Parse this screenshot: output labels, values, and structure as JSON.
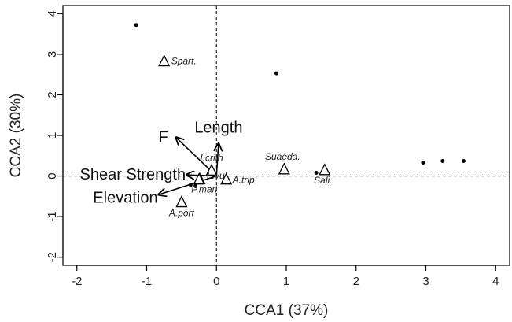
{
  "chart_data": {
    "type": "scatter",
    "xlabel": "CCA1 (37%)",
    "ylabel": "CCA2 (30%)",
    "xlim": [
      -2.2,
      4.2
    ],
    "ylim": [
      -2.2,
      4.2
    ],
    "xticks": [
      -2,
      -1,
      0,
      1,
      2,
      3,
      4
    ],
    "yticks": [
      -2,
      -1,
      0,
      1,
      2,
      3,
      4
    ],
    "xtick_labels": [
      "-2",
      "-1",
      "0",
      "1",
      "2",
      "3",
      "4"
    ],
    "ytick_labels": [
      "-2",
      "-1",
      "0",
      "1",
      "2",
      "3",
      "4"
    ],
    "reference_lines": {
      "x": 0,
      "y": 0,
      "style": "dashed"
    },
    "sites": [
      {
        "x": -1.15,
        "y": 3.72
      },
      {
        "x": 0.86,
        "y": 2.53
      },
      {
        "x": 1.43,
        "y": 0.08
      },
      {
        "x": 2.96,
        "y": 0.33
      },
      {
        "x": 3.24,
        "y": 0.37
      },
      {
        "x": 3.54,
        "y": 0.37
      },
      {
        "x": -0.37,
        "y": -0.22
      },
      {
        "x": -0.3,
        "y": -0.25
      }
    ],
    "species": [
      {
        "label": "Spart.",
        "x": -0.75,
        "y": 2.83
      },
      {
        "label": "I.crith",
        "x": -0.07,
        "y": 0.14
      },
      {
        "label": "L.vul",
        "x": -0.24,
        "y": -0.07
      },
      {
        "label": "A.trip",
        "x": 0.14,
        "y": -0.08
      },
      {
        "label": "P.mari",
        "x": -0.25,
        "y": -0.08
      },
      {
        "label": "A.port",
        "x": -0.5,
        "y": -0.64
      },
      {
        "label": "Suaeda.",
        "x": 0.97,
        "y": 0.17
      },
      {
        "label": "Sali.",
        "x": 1.55,
        "y": 0.15
      }
    ],
    "env_vectors": [
      {
        "label": "Length",
        "x": 0.03,
        "y": 0.8
      },
      {
        "label": "F",
        "x": -0.58,
        "y": 0.95
      },
      {
        "label": "Shear Strength",
        "x": -0.43,
        "y": 0.03
      },
      {
        "label": "Elevation",
        "x": -0.83,
        "y": -0.46
      }
    ]
  }
}
